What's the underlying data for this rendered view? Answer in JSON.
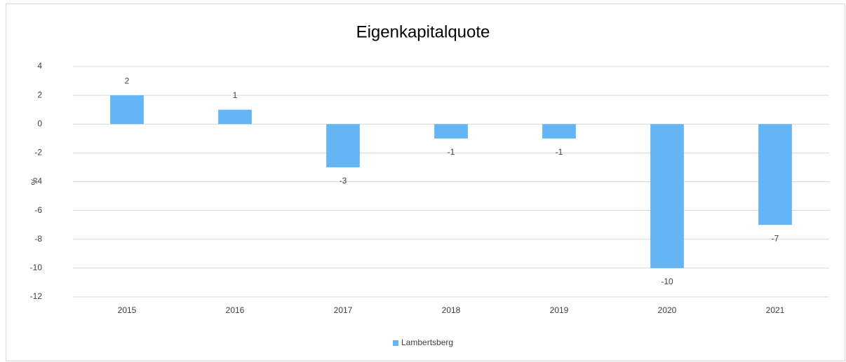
{
  "chart_data": {
    "type": "bar",
    "title": "Eigenkapitalquote",
    "y_label": "%",
    "categories": [
      "2015",
      "2016",
      "2017",
      "2018",
      "2019",
      "2020",
      "2021"
    ],
    "series": [
      {
        "name": "Lambertsberg",
        "color": "#64b5f6",
        "values": [
          2,
          1,
          -3,
          -1,
          -1,
          -10,
          -7
        ]
      }
    ],
    "ylim": [
      -12,
      4
    ],
    "yticks": [
      -12,
      -10,
      -8,
      -6,
      -4,
      -2,
      0,
      2,
      4
    ],
    "grid": true,
    "legend": "bottom"
  }
}
